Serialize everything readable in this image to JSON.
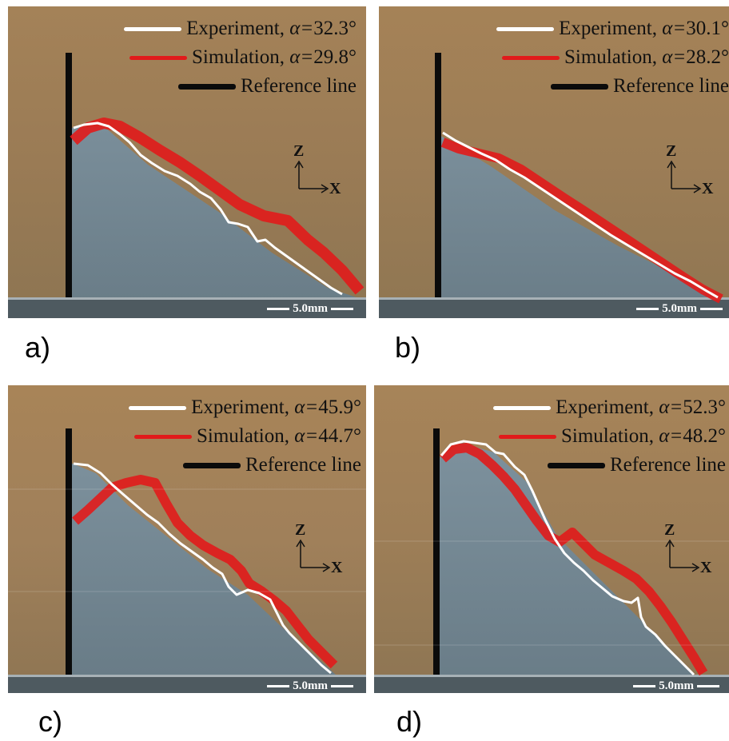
{
  "legend": {
    "experiment": "Experiment,",
    "simulation": "Simulation,",
    "reference": "Reference line",
    "alpha_symbol": "α="
  },
  "axes": {
    "z": "Z",
    "x": "X"
  },
  "scale_label": "5.0mm",
  "colors": {
    "experiment": "#ffffff",
    "simulation": "#e11b1b",
    "reference": "#0b0b0b",
    "background": "#a08058",
    "pile": "#6f8492",
    "floor": "#4e5a60"
  },
  "panels": [
    {
      "label": "a)",
      "exp_angle": "32.3°",
      "sim_angle": "29.8°"
    },
    {
      "label": "b)",
      "exp_angle": "30.1°",
      "sim_angle": "28.2°"
    },
    {
      "label": "c)",
      "exp_angle": "45.9°",
      "sim_angle": "44.7°"
    },
    {
      "label": "d)",
      "exp_angle": "52.3°",
      "sim_angle": "48.2°"
    }
  ]
}
